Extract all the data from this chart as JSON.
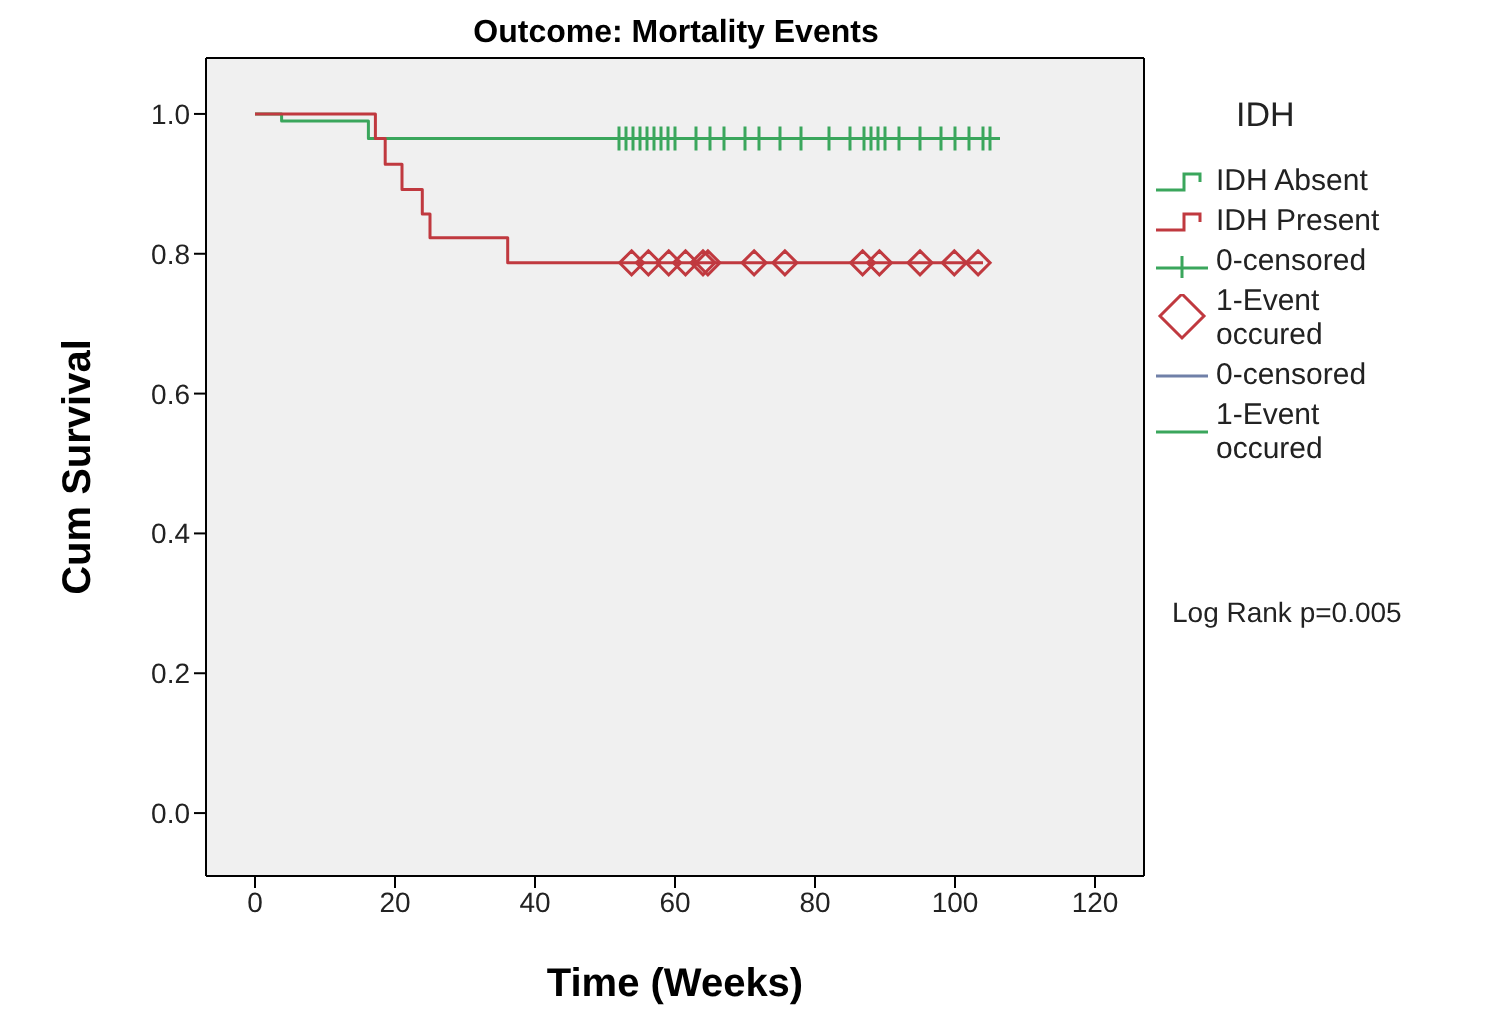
{
  "chart_data": {
    "type": "step",
    "title": "Outcome: Mortality Events",
    "xlabel": "Time (Weeks)",
    "ylabel": "Cum Survival",
    "legend_title": "IDH",
    "xlim": [
      -7,
      127
    ],
    "xticks": [
      0,
      20,
      40,
      60,
      80,
      100,
      120
    ],
    "ylim": [
      -0.09,
      1.08
    ],
    "yticks": [
      {
        "value": 0,
        "label": "0.0"
      },
      {
        "value": 0.2,
        "label": "0.2"
      },
      {
        "value": 0.4,
        "label": "0.4"
      },
      {
        "value": 0.6,
        "label": "0.6"
      },
      {
        "value": 0.8,
        "label": "0.8"
      },
      {
        "value": 1,
        "label": "1.0"
      }
    ],
    "legend": "right",
    "annotations": [
      "Log Rank p=0.005"
    ],
    "series": [
      {
        "name": "IDH Absent",
        "color": "#3aa65c",
        "x": [
          0,
          3.8,
          16.2,
          105
        ],
        "values": [
          1,
          0.99,
          0.965,
          0.965
        ]
      },
      {
        "name": "IDH Present",
        "color": "#c0393f",
        "x": [
          0,
          17.2,
          18.6,
          21,
          23.9,
          25,
          36.1,
          104
        ],
        "values": [
          1,
          0.965,
          0.928,
          0.892,
          0.857,
          0.823,
          0.787,
          0.787
        ]
      },
      {
        "name": "0-censored",
        "type": "scatter",
        "marker": "cross",
        "color": "#3aa65c",
        "x": [
          52,
          53,
          54,
          55,
          56,
          57,
          58,
          59,
          60,
          63,
          65,
          67,
          70,
          72,
          75,
          78,
          82,
          85,
          87,
          88,
          89,
          90,
          92,
          95,
          98,
          100,
          102,
          104,
          105
        ],
        "values": [
          0.965,
          0.965,
          0.965,
          0.965,
          0.965,
          0.965,
          0.965,
          0.965,
          0.965,
          0.965,
          0.965,
          0.965,
          0.965,
          0.965,
          0.965,
          0.965,
          0.965,
          0.965,
          0.965,
          0.965,
          0.965,
          0.965,
          0.965,
          0.965,
          0.965,
          0.965,
          0.965,
          0.965,
          0.965
        ]
      },
      {
        "name": "1-Event occured",
        "type": "scatter",
        "marker": "diamond",
        "color": "#c0393f",
        "x": [
          53.8,
          56.2,
          59.1,
          61.5,
          64,
          64.7,
          71.3,
          75.7,
          86.8,
          89.2,
          95,
          99.9,
          103.3
        ],
        "values": [
          0.787,
          0.787,
          0.787,
          0.787,
          0.787,
          0.787,
          0.787,
          0.787,
          0.787,
          0.787,
          0.787,
          0.787,
          0.787
        ]
      },
      {
        "name": "0-censored",
        "type": "line",
        "color": "#7080a8"
      },
      {
        "name": "1-Event occured",
        "type": "line",
        "color": "#3aa65c"
      }
    ]
  }
}
